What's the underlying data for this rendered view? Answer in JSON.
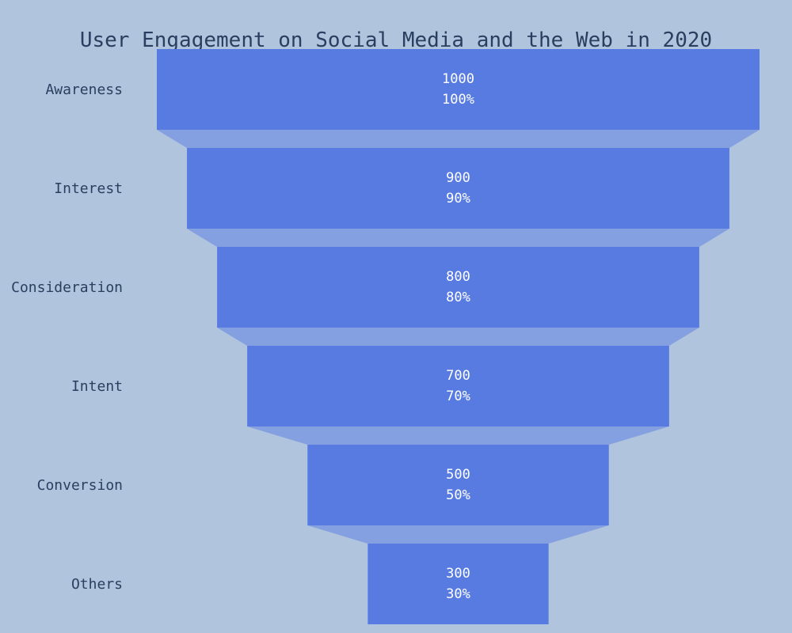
{
  "chart_data": {
    "type": "funnel",
    "title": "User Engagement on Social Media and the Web in 2020",
    "categories": [
      "Awareness",
      "Interest",
      "Consideration",
      "Intent",
      "Conversion",
      "Others"
    ],
    "values": [
      1000,
      900,
      800,
      700,
      500,
      300
    ],
    "percent_labels": [
      "100%",
      "90%",
      "80%",
      "70%",
      "50%",
      "30%"
    ],
    "value_labels": [
      "1000",
      "900",
      "800",
      "700",
      "500",
      "300"
    ],
    "xlabel": "",
    "ylabel": "",
    "legend": "none",
    "grid": false,
    "colors": {
      "background": "#b0c4de",
      "bar": "#587be2",
      "text": "#2a3f5f",
      "bar_text": "#ffffff"
    }
  }
}
